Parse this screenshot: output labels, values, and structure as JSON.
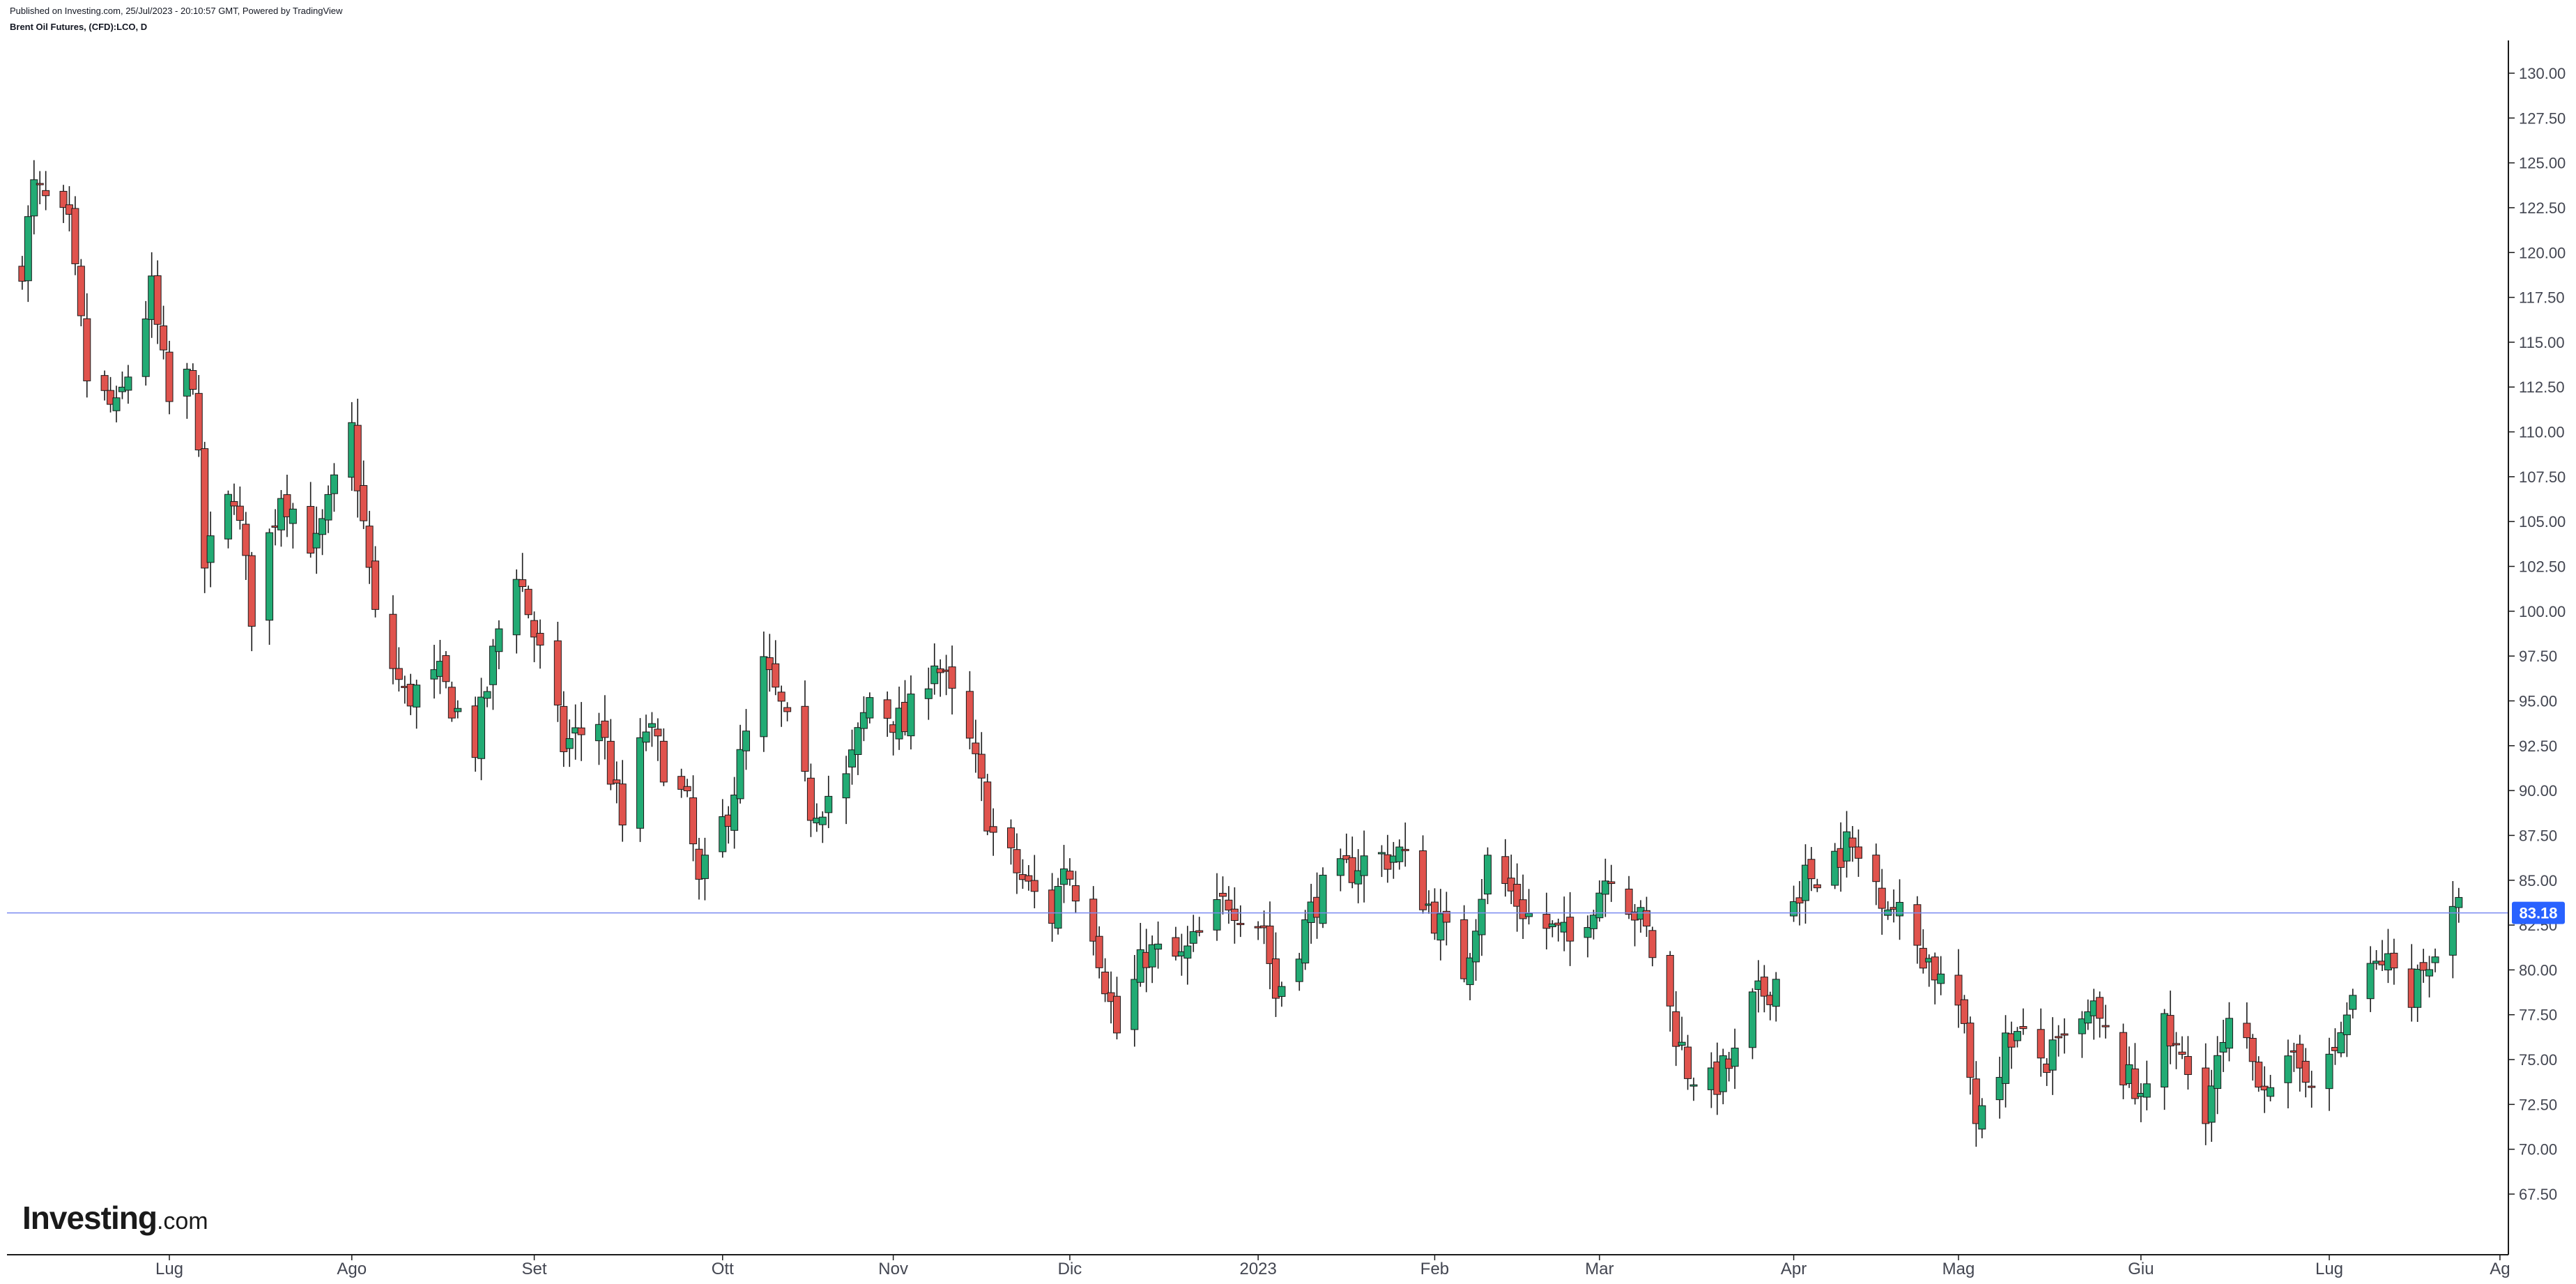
{
  "header": {
    "published": "Published on Investing.com, 25/Jul/2023 - 20:10:57 GMT, Powered by TradingView",
    "title": "Brent Oil Futures, (CFD):LCO, D"
  },
  "logo": {
    "brand": "Investing",
    "suffix": ".com"
  },
  "colors": {
    "up": "#22ab74",
    "down": "#e0534d",
    "wick": "#1a1a1a",
    "last_line": "#7b8bf0",
    "last_badge": "#2962ff"
  },
  "chart_data": {
    "type": "candlestick",
    "title": "Brent Oil Futures, (CFD):LCO, D",
    "last_price": "83.18",
    "y_ticks": [
      "130.00",
      "127.50",
      "125.00",
      "122.50",
      "120.00",
      "117.50",
      "115.00",
      "112.50",
      "110.00",
      "107.50",
      "105.00",
      "102.50",
      "100.00",
      "97.50",
      "95.00",
      "92.50",
      "90.00",
      "87.50",
      "85.00",
      "82.50",
      "80.00",
      "77.50",
      "75.00",
      "72.50",
      "70.00",
      "67.50"
    ],
    "ylim": [
      66.5,
      131.5
    ],
    "x_ticks": [
      {
        "label": "Lug",
        "date": "2022-07-01"
      },
      {
        "label": "Ago",
        "date": "2022-08-01"
      },
      {
        "label": "Set",
        "date": "2022-09-01"
      },
      {
        "label": "Ott",
        "date": "2022-10-03"
      },
      {
        "label": "Nov",
        "date": "2022-11-01"
      },
      {
        "label": "Dic",
        "date": "2022-12-01"
      },
      {
        "label": "2023",
        "date": "2023-01-02"
      },
      {
        "label": "Feb",
        "date": "2023-02-01"
      },
      {
        "label": "Mar",
        "date": "2023-03-01"
      },
      {
        "label": "Apr",
        "date": "2023-04-03"
      },
      {
        "label": "Mag",
        "date": "2023-05-01"
      },
      {
        "label": "Giu",
        "date": "2023-06-01"
      },
      {
        "label": "Lug",
        "date": "2023-07-03"
      },
      {
        "label": "Ag",
        "date": "2023-08-01"
      }
    ],
    "ohlc_anchors": [
      {
        "date": "2022-06-06",
        "close": 119.5
      },
      {
        "date": "2022-06-08",
        "close": 123.5
      },
      {
        "date": "2022-06-14",
        "close": 121.2
      },
      {
        "date": "2022-06-17",
        "close": 113.0
      },
      {
        "date": "2022-06-22",
        "close": 111.0
      },
      {
        "date": "2022-06-28",
        "close": 117.8
      },
      {
        "date": "2022-07-01",
        "close": 111.5
      },
      {
        "date": "2022-07-05",
        "close": 113.3
      },
      {
        "date": "2022-07-07",
        "close": 102.5
      },
      {
        "date": "2022-07-12",
        "close": 106.8
      },
      {
        "date": "2022-07-15",
        "close": 100.0
      },
      {
        "date": "2022-07-20",
        "close": 106.8
      },
      {
        "date": "2022-07-26",
        "close": 103.5
      },
      {
        "date": "2022-08-01",
        "close": 110.0
      },
      {
        "date": "2022-08-05",
        "close": 99.5
      },
      {
        "date": "2022-08-10",
        "close": 95.2
      },
      {
        "date": "2022-08-16",
        "close": 96.2
      },
      {
        "date": "2022-08-22",
        "close": 92.5
      },
      {
        "date": "2022-08-26",
        "close": 99.0
      },
      {
        "date": "2022-08-29",
        "close": 102.5
      },
      {
        "date": "2022-09-06",
        "close": 92.5
      },
      {
        "date": "2022-09-12",
        "close": 94.0
      },
      {
        "date": "2022-09-16",
        "close": 88.0
      },
      {
        "date": "2022-09-20",
        "close": 93.5
      },
      {
        "date": "2022-09-27",
        "close": 89.0
      },
      {
        "date": "2022-09-29",
        "close": 84.5
      },
      {
        "date": "2022-10-04",
        "close": 89.0
      },
      {
        "date": "2022-10-10",
        "close": 96.8
      },
      {
        "date": "2022-10-13",
        "close": 94.5
      },
      {
        "date": "2022-10-18",
        "close": 89.0
      },
      {
        "date": "2022-10-24",
        "close": 90.5
      },
      {
        "date": "2022-10-28",
        "close": 95.2
      },
      {
        "date": "2022-11-03",
        "close": 93.5
      },
      {
        "date": "2022-11-08",
        "close": 97.5
      },
      {
        "date": "2022-11-14",
        "close": 92.5
      },
      {
        "date": "2022-11-18",
        "close": 87.5
      },
      {
        "date": "2022-11-24",
        "close": 84.5
      },
      {
        "date": "2022-11-28",
        "close": 83.0
      },
      {
        "date": "2022-11-30",
        "close": 86.0
      },
      {
        "date": "2022-12-05",
        "close": 82.5
      },
      {
        "date": "2022-12-09",
        "close": 76.5
      },
      {
        "date": "2022-12-14",
        "close": 81.0
      },
      {
        "date": "2022-12-20",
        "close": 80.5
      },
      {
        "date": "2022-12-28",
        "close": 84.0
      },
      {
        "date": "2023-01-03",
        "close": 82.5
      },
      {
        "date": "2023-01-05",
        "close": 78.5
      },
      {
        "date": "2023-01-12",
        "close": 84.0
      },
      {
        "date": "2023-01-19",
        "close": 86.0
      },
      {
        "date": "2023-01-26",
        "close": 86.5
      },
      {
        "date": "2023-02-01",
        "close": 83.0
      },
      {
        "date": "2023-02-06",
        "close": 80.0
      },
      {
        "date": "2023-02-10",
        "close": 86.0
      },
      {
        "date": "2023-02-17",
        "close": 83.0
      },
      {
        "date": "2023-02-24",
        "close": 81.5
      },
      {
        "date": "2023-03-03",
        "close": 85.8
      },
      {
        "date": "2023-03-09",
        "close": 82.0
      },
      {
        "date": "2023-03-16",
        "close": 74.5
      },
      {
        "date": "2023-03-20",
        "close": 73.5
      },
      {
        "date": "2023-03-24",
        "close": 75.0
      },
      {
        "date": "2023-03-27",
        "close": 78.0
      },
      {
        "date": "2023-03-31",
        "close": 79.5
      },
      {
        "date": "2023-04-03",
        "close": 84.5
      },
      {
        "date": "2023-04-12",
        "close": 87.0
      },
      {
        "date": "2023-04-18",
        "close": 84.5
      },
      {
        "date": "2023-04-25",
        "close": 81.0
      },
      {
        "date": "2023-05-01",
        "close": 78.0
      },
      {
        "date": "2023-05-04",
        "close": 72.0
      },
      {
        "date": "2023-05-10",
        "close": 76.5
      },
      {
        "date": "2023-05-16",
        "close": 74.8
      },
      {
        "date": "2023-05-24",
        "close": 77.5
      },
      {
        "date": "2023-05-31",
        "close": 73.0
      },
      {
        "date": "2023-06-05",
        "close": 76.5
      },
      {
        "date": "2023-06-12",
        "close": 72.5
      },
      {
        "date": "2023-06-16",
        "close": 76.5
      },
      {
        "date": "2023-06-22",
        "close": 74.0
      },
      {
        "date": "2023-06-28",
        "close": 74.5
      },
      {
        "date": "2023-07-03",
        "close": 74.5
      },
      {
        "date": "2023-07-07",
        "close": 78.5
      },
      {
        "date": "2023-07-12",
        "close": 80.5
      },
      {
        "date": "2023-07-17",
        "close": 79.0
      },
      {
        "date": "2023-07-21",
        "close": 81.2
      },
      {
        "date": "2023-07-25",
        "close": 83.2
      }
    ],
    "gaps": [
      [
        "2023-03-31",
        "2023-04-03"
      ]
    ],
    "grid": false,
    "legend": "none"
  }
}
